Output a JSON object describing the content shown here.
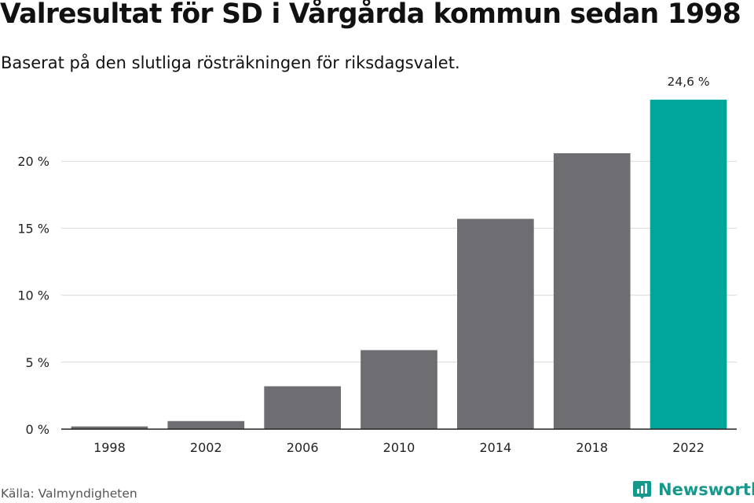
{
  "header": {
    "title": "Valresultat för SD i Vårgårda kommun sedan 1998",
    "subtitle": "Baserat på den slutliga rösträkningen för riksdagsvalet."
  },
  "chart_data": {
    "type": "bar",
    "title": "Valresultat för SD i Vårgårda kommun sedan 1998",
    "subtitle": "Baserat på den slutliga rösträkningen för riksdagsvalet.",
    "categories": [
      "1998",
      "2002",
      "2006",
      "2010",
      "2014",
      "2018",
      "2022"
    ],
    "values": [
      0.2,
      0.6,
      3.2,
      5.9,
      15.7,
      20.6,
      24.6
    ],
    "ylim": [
      0,
      25
    ],
    "yticks": [
      0,
      5,
      10,
      15,
      20
    ],
    "ytick_labels": [
      "0 %",
      "5 %",
      "10 %",
      "15 %",
      "20 %"
    ],
    "data_labels": {
      "2022": "24,6 %"
    },
    "grid": true,
    "xlabel": "",
    "ylabel": "",
    "colors": {
      "default": "#6e6d72",
      "highlight": "#00a69a"
    },
    "highlight": "2022"
  },
  "footer": {
    "source": "Källa: Valmyndigheten",
    "brand": "Newsworthy",
    "brand_color": "#16998c"
  }
}
